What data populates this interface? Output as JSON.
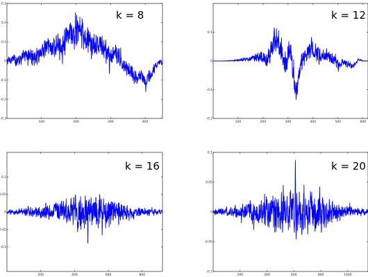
{
  "figure": {
    "line_color": "#0000ff"
  },
  "chart_data": [
    {
      "type": "line",
      "title": "k = 8",
      "xlim": [
        0,
        450
      ],
      "ylim": [
        -0.3,
        0.3
      ],
      "xticks": [
        100,
        200,
        300,
        400
      ],
      "xtick_labels": [
        "100",
        "200",
        "300",
        "400"
      ],
      "yticks": [
        0.3,
        0.2,
        0.1,
        0.0,
        -0.1,
        -0.2,
        -0.3
      ],
      "ytick_labels": [
        "0.3",
        "0.2",
        "0.1",
        "0",
        "-0.1",
        "-0.2",
        "-0.3"
      ],
      "grid": false,
      "series": [
        {
          "x": [
            0,
            15,
            30,
            45,
            60,
            75,
            90,
            105,
            120,
            135,
            150,
            165,
            180,
            195,
            210,
            225,
            240,
            255,
            270,
            285,
            300,
            315,
            330,
            345,
            360,
            375,
            390,
            405,
            420,
            435,
            450
          ],
          "values": [
            0.0,
            0.01,
            0.005,
            0.02,
            0.03,
            0.02,
            0.035,
            0.06,
            0.08,
            0.07,
            0.085,
            0.1,
            0.14,
            0.13,
            0.16,
            0.11,
            0.1,
            0.07,
            0.09,
            0.05,
            0.02,
            0.04,
            0.0,
            -0.03,
            -0.06,
            -0.09,
            -0.07,
            -0.11,
            -0.06,
            -0.02,
            0.0
          ],
          "envelope": [
            0.02,
            0.025,
            0.035,
            0.04,
            0.045,
            0.05,
            0.05,
            0.055,
            0.06,
            0.06,
            0.065,
            0.07,
            0.07,
            0.075,
            0.08,
            0.08,
            0.075,
            0.07,
            0.07,
            0.06,
            0.06,
            0.055,
            0.05,
            0.05,
            0.045,
            0.045,
            0.04,
            0.04,
            0.03,
            0.02,
            0.02
          ]
        }
      ]
    },
    {
      "type": "line",
      "title": "k = 12",
      "xlim": [
        0,
        620
      ],
      "ylim": [
        -0.2,
        0.2
      ],
      "xticks": [
        100,
        200,
        300,
        400,
        500,
        600
      ],
      "xtick_labels": [
        "100",
        "200",
        "300",
        "400",
        "500",
        "600"
      ],
      "yticks": [
        0.1,
        0.0,
        -0.1,
        -0.2
      ],
      "ytick_labels": [
        "0.1",
        "0",
        "-0.1",
        "-0.2"
      ],
      "grid": false,
      "series": [
        {
          "x": [
            0,
            50,
            100,
            130,
            160,
            190,
            210,
            230,
            250,
            270,
            290,
            310,
            330,
            350,
            370,
            390,
            410,
            430,
            450,
            470,
            500,
            530,
            560,
            580,
            600,
            620
          ],
          "values": [
            0.0,
            0.0,
            0.002,
            0.006,
            0.01,
            0.02,
            -0.005,
            0.03,
            0.08,
            0.04,
            -0.01,
            0.05,
            -0.12,
            -0.02,
            0.02,
            0.04,
            0.03,
            0.02,
            0.02,
            0.01,
            -0.01,
            -0.005,
            -0.02,
            0.005,
            0.0,
            0.0
          ],
          "envelope": [
            0.0,
            0.001,
            0.004,
            0.008,
            0.012,
            0.02,
            0.025,
            0.04,
            0.06,
            0.06,
            0.05,
            0.05,
            0.045,
            0.04,
            0.035,
            0.03,
            0.03,
            0.028,
            0.026,
            0.024,
            0.02,
            0.015,
            0.01,
            0.006,
            0.002,
            0.0
          ]
        }
      ]
    },
    {
      "type": "line",
      "title": "k = 16",
      "xlim": [
        0,
        920
      ],
      "ylim": [
        -0.17,
        0.17
      ],
      "xticks": [
        200,
        400,
        600,
        800
      ],
      "xtick_labels": [
        "200",
        "400",
        "600",
        "800"
      ],
      "yticks": [
        0.1,
        0.05,
        0.0,
        -0.05,
        -0.1
      ],
      "ytick_labels": [
        "0.1",
        "0.05",
        "0",
        "-0.05",
        "-0.1"
      ],
      "grid": false,
      "series": [
        {
          "x": [
            0,
            60,
            120,
            180,
            240,
            300,
            360,
            420,
            480,
            540,
            600,
            660,
            720,
            780,
            840,
            920
          ],
          "values": [
            0.0,
            0.0,
            0.0,
            0.0,
            0.0,
            0.0,
            0.0,
            0.0,
            0.0,
            0.0,
            0.0,
            0.0,
            0.0,
            0.0,
            0.0,
            0.0
          ],
          "envelope": [
            0.006,
            0.01,
            0.014,
            0.018,
            0.022,
            0.03,
            0.045,
            0.06,
            0.055,
            0.05,
            0.045,
            0.035,
            0.022,
            0.015,
            0.01,
            0.006
          ]
        }
      ]
    },
    {
      "type": "line",
      "title": "k = 20",
      "xlim": [
        0,
        1150
      ],
      "ylim": [
        -0.1,
        0.1
      ],
      "xticks": [
        200,
        400,
        600,
        800,
        1000
      ],
      "xtick_labels": [
        "200",
        "400",
        "600",
        "800",
        "1000"
      ],
      "yticks": [
        0.1,
        0.05,
        0.0,
        -0.05,
        -0.1
      ],
      "ytick_labels": [
        "0.1",
        "0.05",
        "0",
        "-0.05",
        "-0.1"
      ],
      "grid": false,
      "series": [
        {
          "x": [
            0,
            80,
            160,
            240,
            320,
            400,
            480,
            560,
            640,
            720,
            800,
            880,
            960,
            1040,
            1150
          ],
          "values": [
            0.0,
            0.0,
            0.0,
            0.0,
            0.0,
            0.0,
            0.0,
            0.0,
            0.0,
            0.0,
            0.0,
            0.0,
            0.0,
            0.0,
            0.0
          ],
          "envelope": [
            0.004,
            0.006,
            0.01,
            0.014,
            0.02,
            0.03,
            0.035,
            0.04,
            0.042,
            0.038,
            0.032,
            0.022,
            0.014,
            0.008,
            0.005
          ]
        }
      ]
    }
  ]
}
